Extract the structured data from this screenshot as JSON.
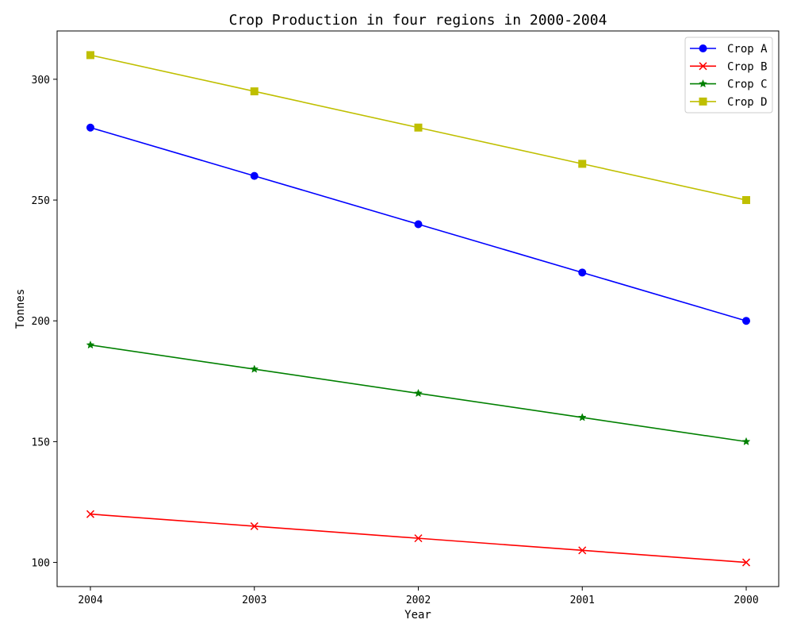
{
  "chart_data": {
    "type": "line",
    "title": "Crop Production in four regions in 2000-2004",
    "xlabel": "Year",
    "ylabel": "Tonnes",
    "categories": [
      "2004",
      "2003",
      "2002",
      "2001",
      "2000"
    ],
    "ylim": [
      90,
      320
    ],
    "yticks": [
      100,
      150,
      200,
      250,
      300
    ],
    "grid": false,
    "legend_position": "top-right",
    "series": [
      {
        "name": "Crop A",
        "color": "#0000ff",
        "marker": "circle",
        "values": [
          280,
          260,
          240,
          220,
          200
        ]
      },
      {
        "name": "Crop B",
        "color": "#ff0000",
        "marker": "x",
        "values": [
          120,
          115,
          110,
          105,
          100
        ]
      },
      {
        "name": "Crop C",
        "color": "#008000",
        "marker": "star",
        "values": [
          190,
          180,
          170,
          160,
          150
        ]
      },
      {
        "name": "Crop D",
        "color": "#bfbf00",
        "marker": "square",
        "values": [
          310,
          295,
          280,
          265,
          250
        ]
      }
    ]
  }
}
